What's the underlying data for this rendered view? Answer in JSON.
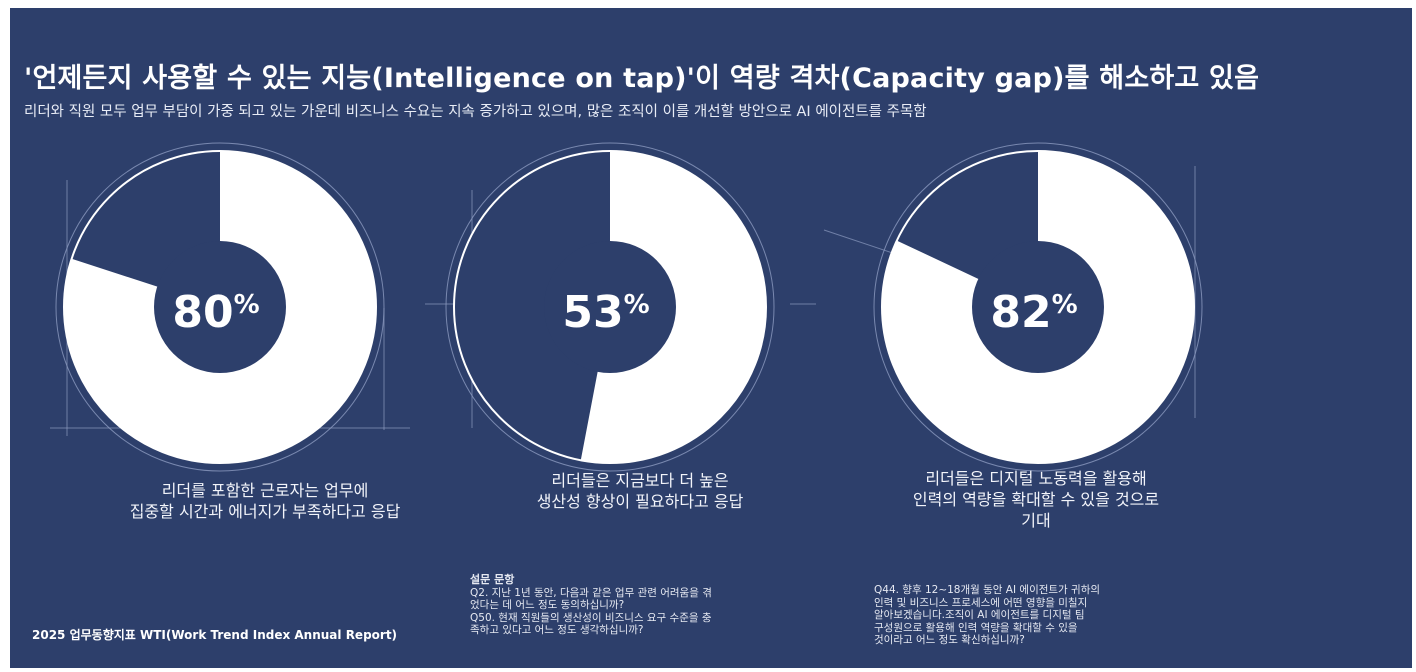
{
  "header": {
    "title": "'언제든지 사용할 수 있는 지능(Intelligence on tap)'이 역량 격차(Capacity gap)를 해소하고 있음",
    "subtitle": "리더와 직원 모두 업무 부담이 가중 되고 있는 가운데 비즈니스 수요는 지속 증가하고 있으며, 많은 조직이 이를 개선할 방안으로 AI 에이전트를 주목함"
  },
  "chart_data": [
    {
      "type": "pie",
      "values": [
        80,
        20
      ],
      "center_label": "80%",
      "caption_lines": [
        "리더를 포함한 근로자는 업무에",
        "집중할 시간과 에너지가 부족하다고 응답"
      ]
    },
    {
      "type": "pie",
      "values": [
        53,
        47
      ],
      "center_label": "53%",
      "caption_lines": [
        "리더들은 지금보다 더 높은",
        "생산성 향상이 필요하다고 응답"
      ]
    },
    {
      "type": "pie",
      "values": [
        82,
        18
      ],
      "center_label": "82%",
      "caption_lines": [
        "리더들은 디지털 노동력을 활용해",
        "인력의 역량을 확대할 수 있을 것으로",
        "기대"
      ]
    }
  ],
  "colors": {
    "background": "#2d3f6b",
    "fill": "#ffffff",
    "remainder": "#2d3f6b"
  },
  "footer": {
    "source": "2025 업무동향지표 WTI(Work Trend Index Annual Report)"
  },
  "survey": {
    "title": "설문 문항",
    "q2": [
      "Q2. 지난 1년 동안, 다음과 같은 업무 관련 어려움을 겪",
      "었다는 데 어느 정도 동의하십니까?"
    ],
    "q50": [
      "Q50. 현재 직원들의 생산성이 비즈니스 요구 수준을 충",
      "족하고 있다고 어느 정도 생각하십니까?"
    ],
    "q44": [
      "Q44. 향후 12~18개월 동안 AI 에이전트가 귀하의",
      "인력 및 비즈니스 프로세스에 어떤 영향을 미칠지",
      "알아보겠습니다.조직이 AI 에이전트를 디지털 팀",
      "구성원으로 활용해 인력 역량을 확대할 수 있을",
      "것이라고 어느 정도 확신하십니까?"
    ]
  }
}
